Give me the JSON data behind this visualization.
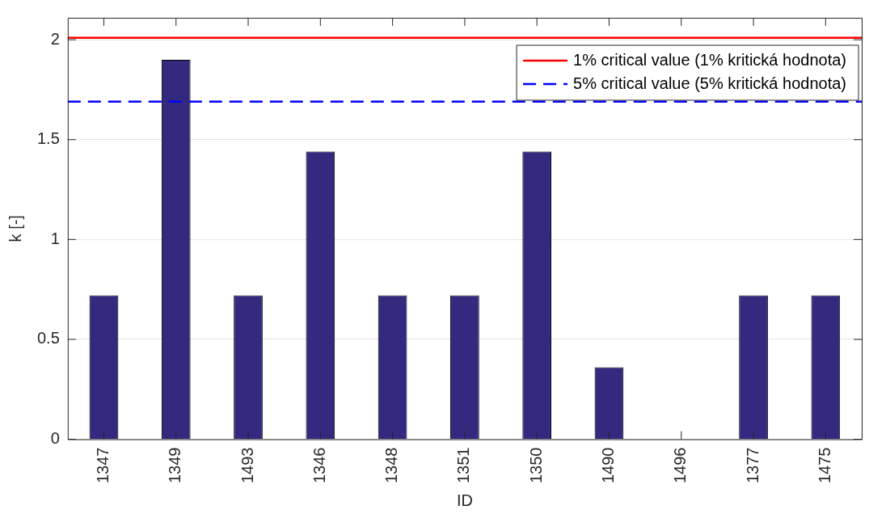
{
  "chart_data": {
    "type": "bar",
    "xlabel": "ID",
    "ylabel": "k [-]",
    "categories": [
      "1347",
      "1349",
      "1493",
      "1346",
      "1348",
      "1351",
      "1350",
      "1490",
      "1496",
      "1377",
      "1475"
    ],
    "values": [
      0.72,
      1.9,
      0.72,
      1.44,
      0.72,
      0.72,
      1.44,
      0.36,
      0,
      0.72,
      0.72
    ],
    "color": "#332a80",
    "ylim": [
      0,
      2.11
    ],
    "yticks": [
      0,
      0.5,
      1,
      1.5,
      2
    ],
    "grid": "y",
    "legend": "top right",
    "ref_lines": [
      {
        "axis": "y",
        "value": 2.01,
        "label": "1% critical value (1% kritická hodnota)",
        "color": "#ff0000",
        "line_style": "solid"
      },
      {
        "axis": "y",
        "value": 1.69,
        "label": "5% critical value (5% kritická hodnota)",
        "color": "#0000ff",
        "line_style": "dashed"
      }
    ]
  }
}
